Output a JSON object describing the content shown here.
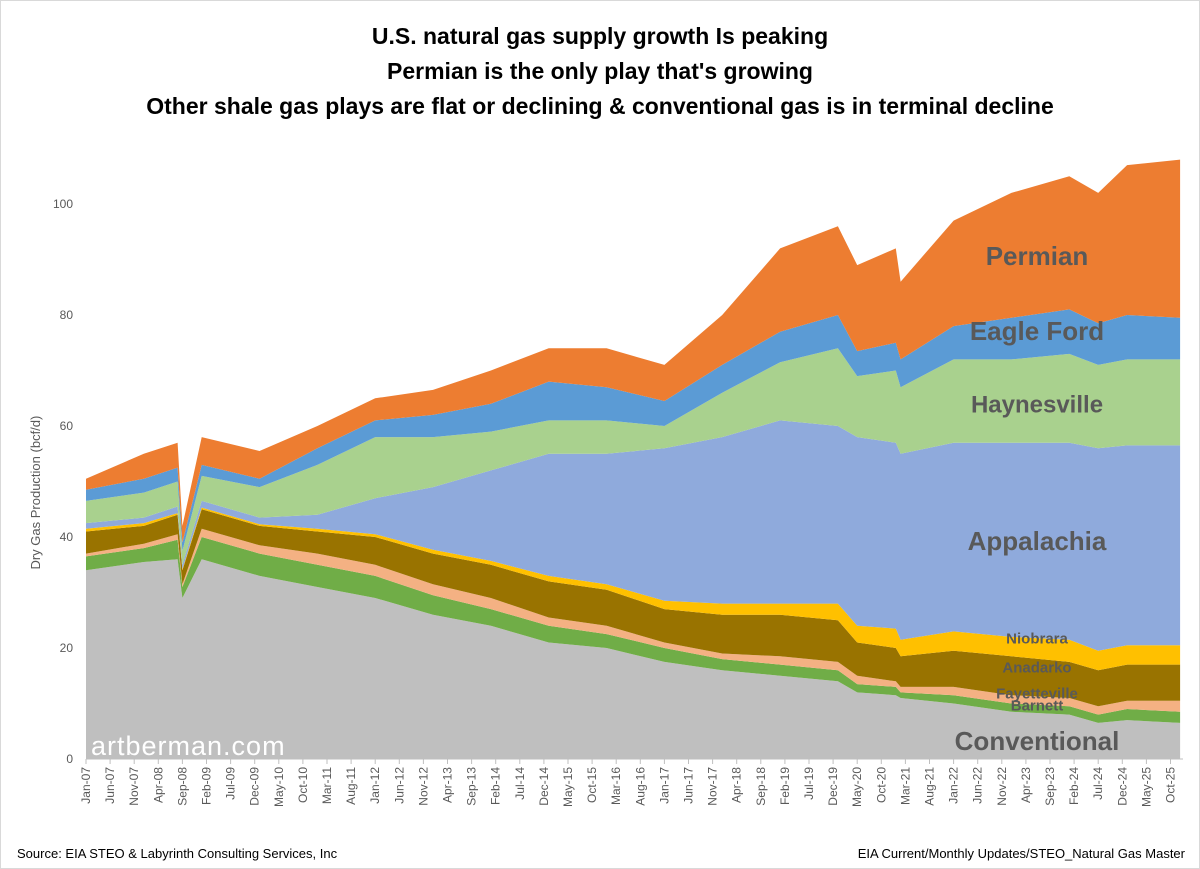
{
  "chart_data": {
    "type": "area",
    "stacked": true,
    "title": [
      "U.S. natural gas supply growth Is peaking",
      "Permian is the only play that's growing",
      "Other shale gas plays are flat or declining & conventional gas is in terminal decline"
    ],
    "ylabel": "Dry Gas Production (bcf/d)",
    "xlabel": "",
    "ylim": [
      0,
      110
    ],
    "yticks": [
      "0",
      "20",
      "40",
      "60",
      "80",
      "100"
    ],
    "xticks": [
      "Jan-07",
      "Jun-07",
      "Nov-07",
      "Apr-08",
      "Sep-08",
      "Feb-09",
      "Jul-09",
      "Dec-09",
      "May-10",
      "Oct-10",
      "Mar-11",
      "Aug-11",
      "Jan-12",
      "Jun-12",
      "Nov-12",
      "Apr-13",
      "Sep-13",
      "Feb-14",
      "Jul-14",
      "Dec-14",
      "May-15",
      "Oct-15",
      "Mar-16",
      "Aug-16",
      "Jan-17",
      "Jun-17",
      "Nov-17",
      "Apr-18",
      "Sep-18",
      "Feb-19",
      "Jul-19",
      "Dec-19",
      "May-20",
      "Oct-20",
      "Mar-21",
      "Aug-21",
      "Jan-22",
      "Jun-22",
      "Nov-22",
      "Apr-23",
      "Sep-23",
      "Feb-24",
      "Jul-24",
      "Dec-24",
      "May-25",
      "Oct-25"
    ],
    "grid": false,
    "legend": "inline labels",
    "x": [
      "2007-01",
      "2008-01",
      "2008-08",
      "2008-09",
      "2009-01",
      "2010-01",
      "2011-01",
      "2012-01",
      "2013-01",
      "2014-01",
      "2015-01",
      "2016-01",
      "2017-01",
      "2018-01",
      "2019-01",
      "2020-01",
      "2020-05",
      "2021-01",
      "2021-02",
      "2022-01",
      "2023-01",
      "2024-01",
      "2024-07",
      "2025-01",
      "2025-12"
    ],
    "series": [
      {
        "name": "Conventional",
        "color": "#bfbfbf",
        "values": [
          34,
          35.5,
          36,
          29,
          36,
          33,
          31,
          29,
          26,
          24,
          21,
          20,
          17.5,
          16,
          15,
          14,
          12,
          11.5,
          11,
          10,
          8.5,
          8,
          6.5,
          7,
          6.5
        ]
      },
      {
        "name": "Barnett",
        "color": "#70ad47",
        "values": [
          2.5,
          2.5,
          3.5,
          2,
          4,
          4,
          4,
          4,
          3.5,
          3,
          3,
          2.5,
          2.5,
          2,
          2,
          2,
          1.5,
          1.5,
          1,
          1.5,
          1.5,
          1.5,
          1.5,
          2,
          2
        ]
      },
      {
        "name": "Fayetteville",
        "color": "#f4b183",
        "values": [
          0.5,
          0.8,
          1,
          0.5,
          1.5,
          1.5,
          2,
          2,
          2,
          2,
          1.5,
          1.5,
          1,
          1,
          1.5,
          1.5,
          1.5,
          1,
          1,
          1.5,
          1.5,
          1.5,
          1.5,
          1.5,
          2
        ]
      },
      {
        "name": "Anadarko",
        "color": "#997300",
        "values": [
          4,
          3.2,
          3.5,
          2.5,
          3.5,
          3.5,
          4,
          5,
          5.5,
          6,
          6.5,
          6.5,
          6,
          7,
          7.5,
          7.5,
          6,
          6,
          5.5,
          6.5,
          7,
          6.5,
          6.5,
          6.5,
          6.5
        ]
      },
      {
        "name": "Niobrara",
        "color": "#ffc000",
        "values": [
          0.5,
          0.5,
          0.3,
          0.2,
          0.3,
          0.3,
          0.5,
          0.5,
          0.7,
          0.7,
          1,
          1,
          1.5,
          2,
          2,
          3,
          3,
          3.5,
          3,
          3.5,
          3.5,
          4,
          3.5,
          3.5,
          3.5
        ]
      },
      {
        "name": "Appalachia",
        "color": "#8faadc",
        "values": [
          1,
          1,
          1.2,
          0.8,
          1.2,
          1.2,
          2.5,
          6.5,
          11.3,
          16.3,
          22,
          23.5,
          27.5,
          30,
          33,
          32,
          34,
          33.5,
          33.5,
          34,
          35,
          35.5,
          36.5,
          36,
          36
        ]
      },
      {
        "name": "Haynesville",
        "color": "#a9d18e",
        "values": [
          4,
          4.5,
          4.5,
          2.5,
          4.5,
          5.5,
          9,
          11,
          9,
          7,
          6,
          6,
          4,
          8,
          10.5,
          14,
          11,
          13,
          12,
          15,
          15,
          16,
          15,
          15.5,
          15.5
        ]
      },
      {
        "name": "Eagle Ford",
        "color": "#5b9bd5",
        "values": [
          2,
          2.5,
          2.5,
          1.5,
          2,
          1.5,
          3,
          3,
          4,
          5,
          7,
          6,
          4.5,
          5,
          5.5,
          6,
          4.5,
          5,
          5,
          6,
          7.5,
          8,
          7.5,
          8,
          7.5
        ]
      },
      {
        "name": "Permian",
        "color": "#ed7d31",
        "values": [
          2,
          4.5,
          4.5,
          3,
          5,
          5,
          4,
          4,
          4.5,
          6,
          6,
          7,
          6.5,
          9,
          15,
          16,
          15.5,
          17,
          14,
          19,
          22.5,
          24,
          23.5,
          27,
          28.5
        ]
      }
    ],
    "watermark": "artberman.com"
  },
  "footer": {
    "source": "Source: EIA STEO & Labyrinth Consulting Services, Inc",
    "file": "EIA Current/Monthly Updates/STEO_Natural Gas Master"
  }
}
